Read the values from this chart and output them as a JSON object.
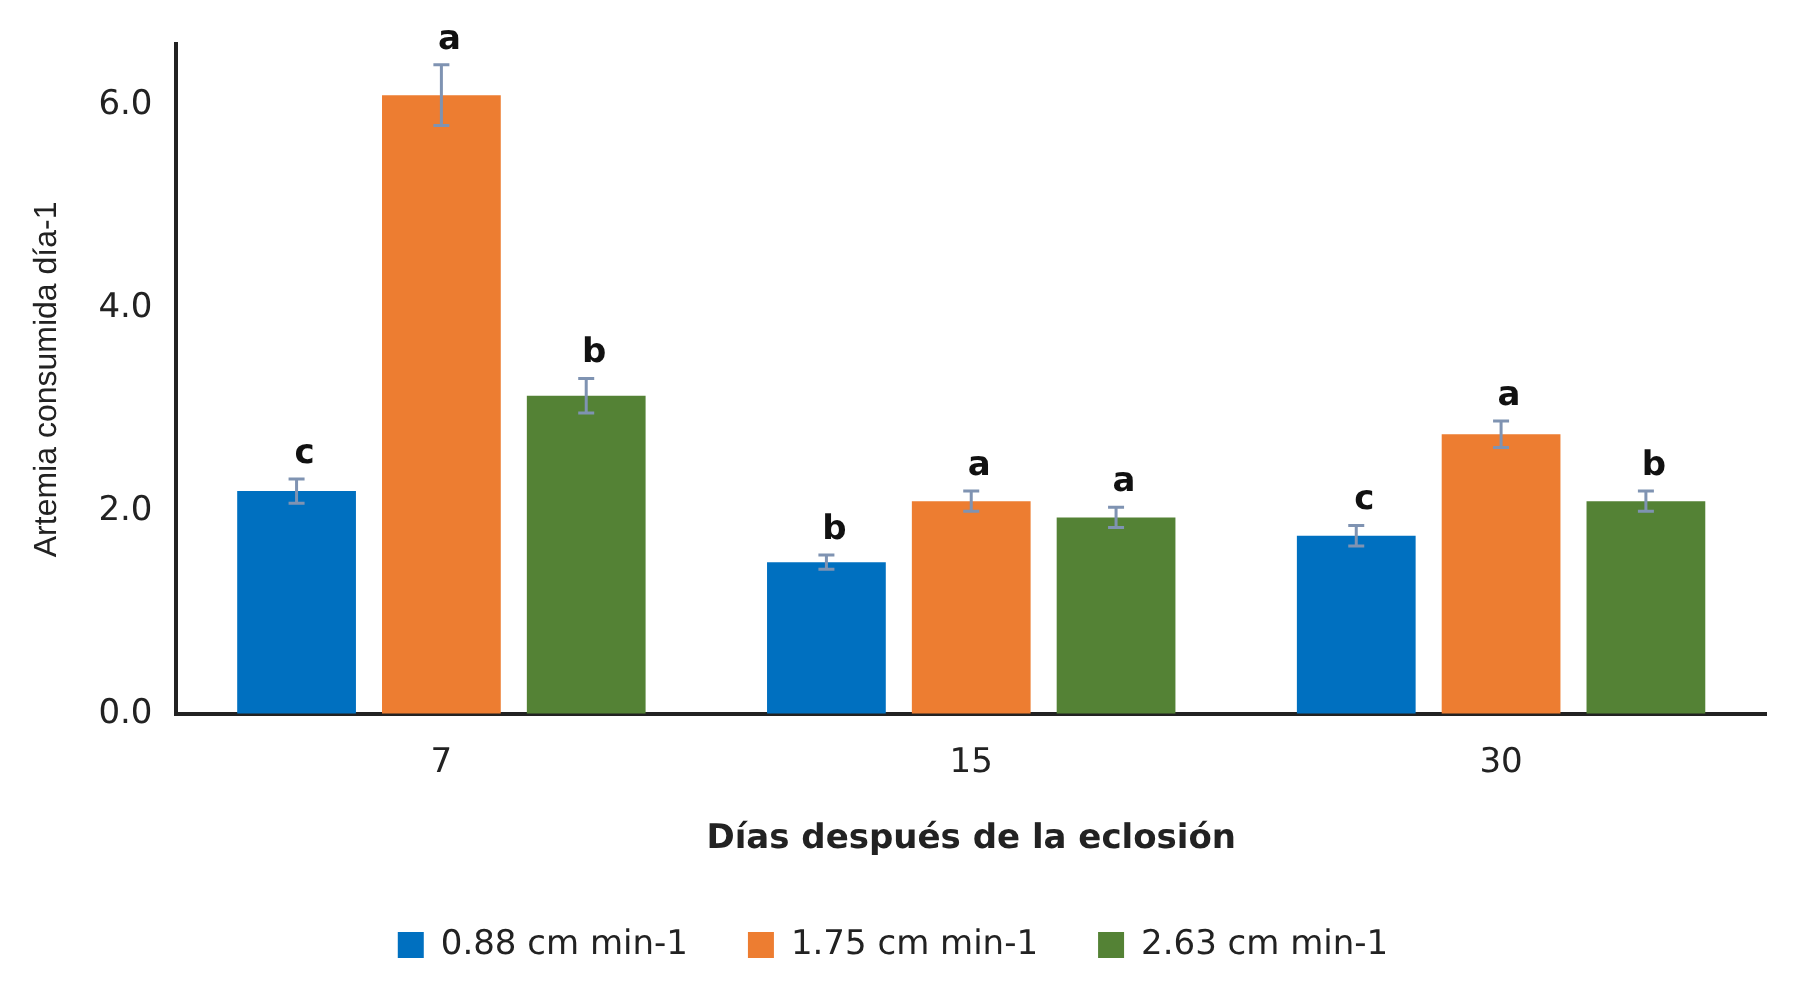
{
  "chart_data": {
    "type": "bar",
    "xlabel": "Días después de la eclosión",
    "ylabel": "Artemia consumida día-1",
    "categories": [
      "7",
      "15",
      "30"
    ],
    "series": [
      {
        "name": "0.88 cm min-1",
        "color": "#0070c0",
        "values": [
          2.2,
          1.5,
          1.76
        ],
        "errors": [
          0.12,
          0.07,
          0.1
        ],
        "value_labels": [
          "c",
          "b",
          "c"
        ]
      },
      {
        "name": "1.75 cm min-1",
        "color": "#ed7d31",
        "values": [
          6.1,
          2.1,
          2.76
        ],
        "errors": [
          0.3,
          0.1,
          0.13
        ],
        "value_labels": [
          "a",
          "a",
          "a"
        ]
      },
      {
        "name": "2.63 cm min-1",
        "color": "#548235",
        "values": [
          3.14,
          1.94,
          2.1
        ],
        "errors": [
          0.17,
          0.1,
          0.1
        ],
        "value_labels": [
          "b",
          "a",
          "b"
        ]
      }
    ],
    "ylim": [
      0,
      6.6
    ],
    "yticks": [
      {
        "value": 0,
        "label": "0.0"
      },
      {
        "value": 2,
        "label": "2.0"
      },
      {
        "value": 4,
        "label": "4.0"
      },
      {
        "value": 6,
        "label": "6.0"
      }
    ],
    "grid": false,
    "legend": "bottom"
  }
}
